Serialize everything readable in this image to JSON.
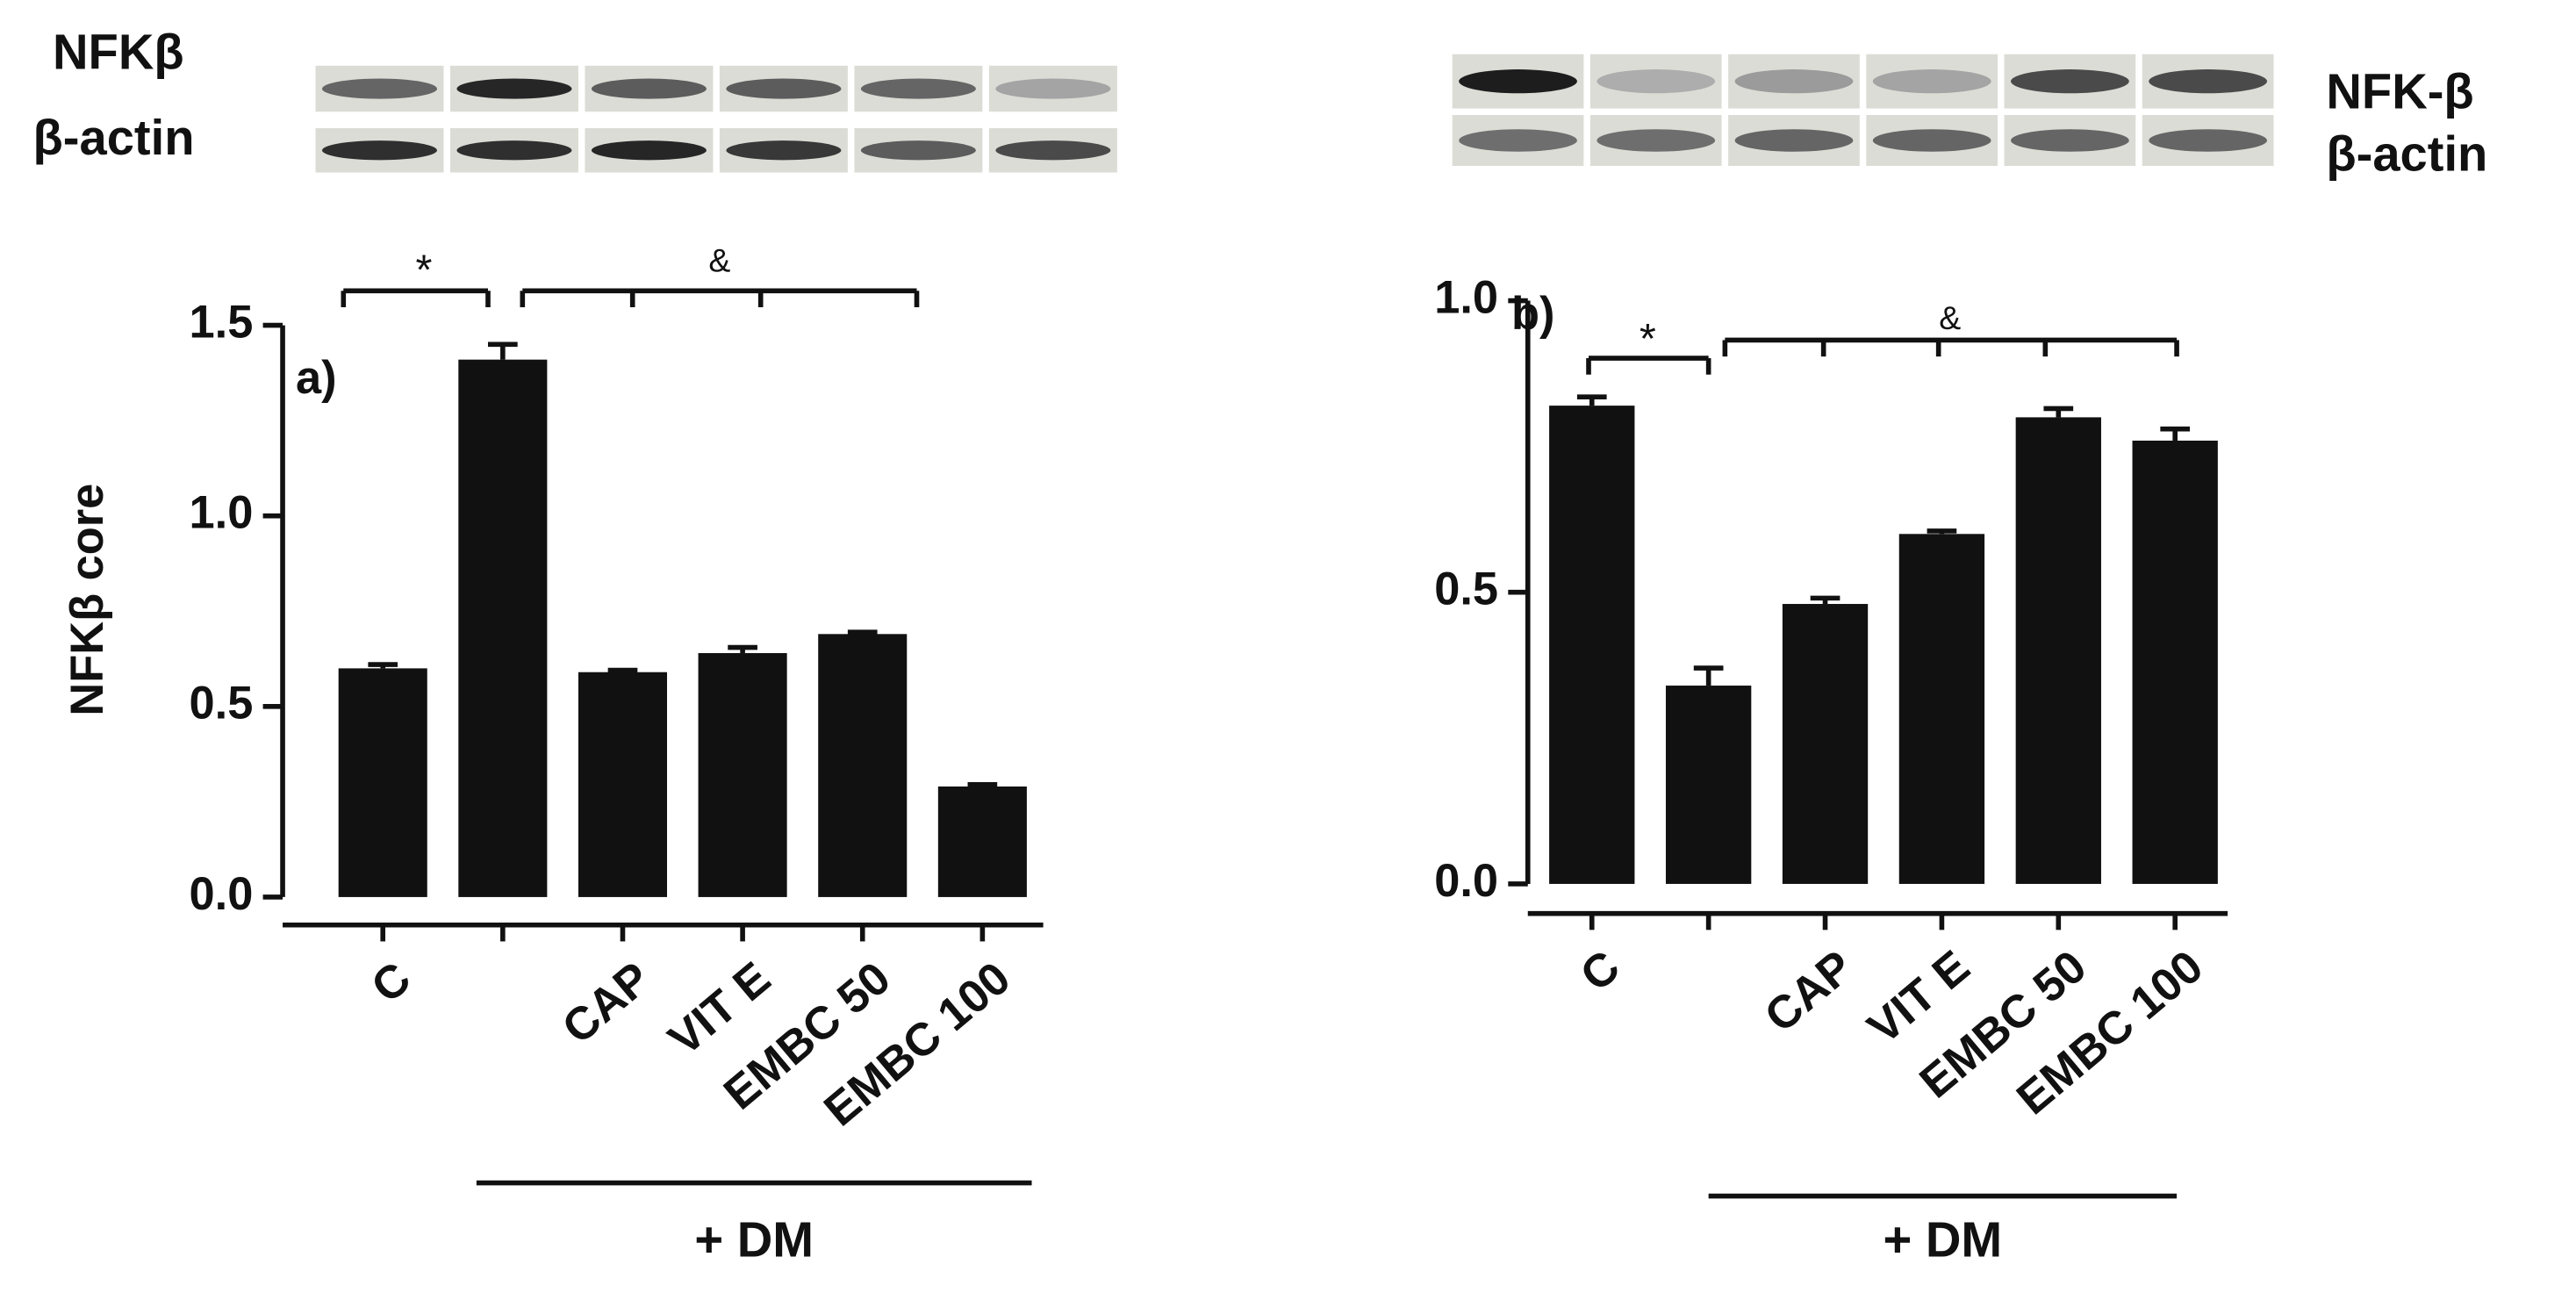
{
  "blots": [
    {
      "labels": [
        "NFKβ",
        "β-actin"
      ]
    },
    {
      "labels": [
        "NFK-β",
        "β-actin"
      ]
    }
  ],
  "chart_data": [
    {
      "type": "bar",
      "panel_label": "a)",
      "y_label": "NFKβ core",
      "categories": [
        "C",
        null,
        "CAP",
        "VIT E",
        "EMBC 50",
        "EMBC 100"
      ],
      "values": [
        0.6,
        1.41,
        0.59,
        0.64,
        0.69,
        0.29
      ],
      "errors": [
        0.01,
        0.04,
        0.005,
        0.015,
        0.005,
        0.005
      ],
      "color": "#111111",
      "group_label": "+ DM",
      "annotations": [
        "*",
        "&"
      ],
      "ylim": [
        0,
        1.5
      ],
      "yticks": [
        {
          "value": 0,
          "label": "0.0"
        },
        0.5,
        {
          "value": 1,
          "label": "1.0"
        },
        1.5
      ]
    },
    {
      "type": "bar",
      "panel_label": "b)",
      "categories": [
        "C",
        null,
        "CAP",
        "VIT E",
        "EMBC 50",
        "EMBC 100"
      ],
      "values": [
        0.82,
        0.34,
        0.48,
        0.6,
        0.8,
        0.76
      ],
      "errors": [
        0.015,
        0.03,
        0.01,
        0.005,
        0.015,
        0.02
      ],
      "color": "#111111",
      "group_label": "+ DM",
      "annotations": [
        "*",
        "&"
      ],
      "ylim": [
        0,
        1.0
      ],
      "yticks": [
        {
          "value": 0,
          "label": "0.0"
        },
        0.5,
        {
          "value": 1,
          "label": "1.0"
        }
      ]
    }
  ]
}
